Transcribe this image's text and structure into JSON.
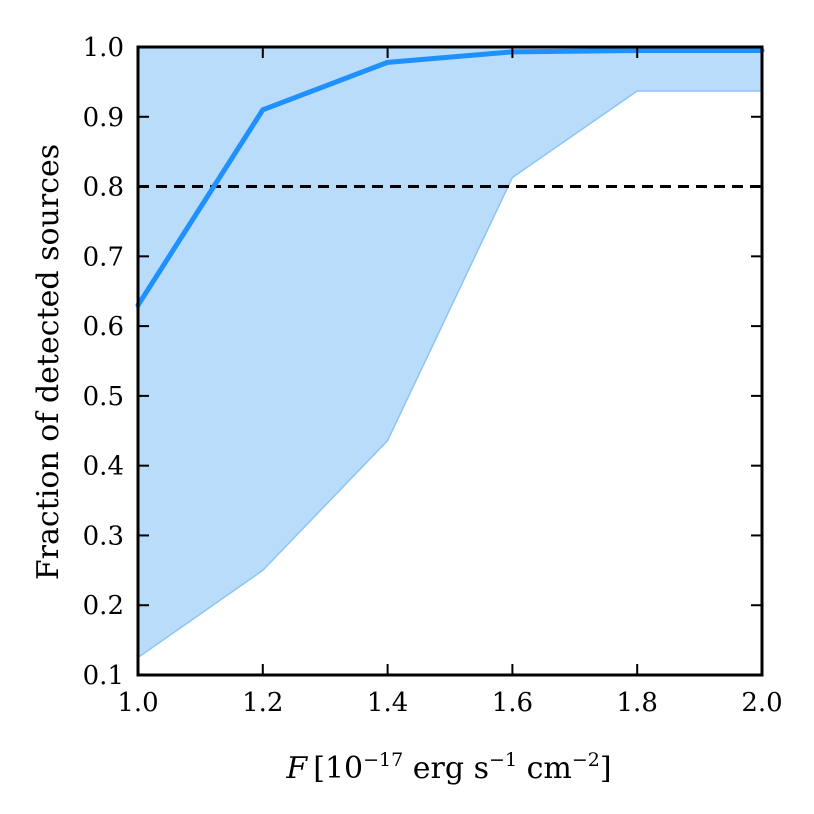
{
  "chart_data": {
    "type": "line",
    "xlabel": {
      "var": "F",
      "open": "[10",
      "exp1": "−17",
      "erg": " erg s",
      "exp2": "−1",
      "cm": " cm",
      "exp3": "−2",
      "close": "]"
    },
    "ylabel": "Fraction of detected sources",
    "xlim": [
      1.0,
      2.0
    ],
    "ylim": [
      0.1,
      1.0
    ],
    "xticks": [
      "1.0",
      "1.2",
      "1.4",
      "1.6",
      "1.8",
      "2.0"
    ],
    "yticks": [
      "0.1",
      "0.2",
      "0.3",
      "0.4",
      "0.5",
      "0.6",
      "0.7",
      "0.8",
      "0.9",
      "1.0"
    ],
    "x": [
      1.0,
      1.2,
      1.4,
      1.6,
      1.8,
      2.0
    ],
    "series": [
      {
        "values": [
          0.63,
          0.91,
          0.978,
          0.993,
          0.995,
          0.995
        ],
        "color": "#1e90ff"
      }
    ],
    "band": {
      "lower": [
        0.125,
        0.25,
        0.436,
        0.813,
        0.937,
        0.937
      ],
      "upper": [
        1.0,
        1.0,
        1.0,
        1.0,
        1.0,
        1.0
      ],
      "color": "#b9dcfb"
    },
    "reference_line": {
      "y": 0.8,
      "style": "dashed",
      "color": "#000000"
    },
    "grid": false
  }
}
